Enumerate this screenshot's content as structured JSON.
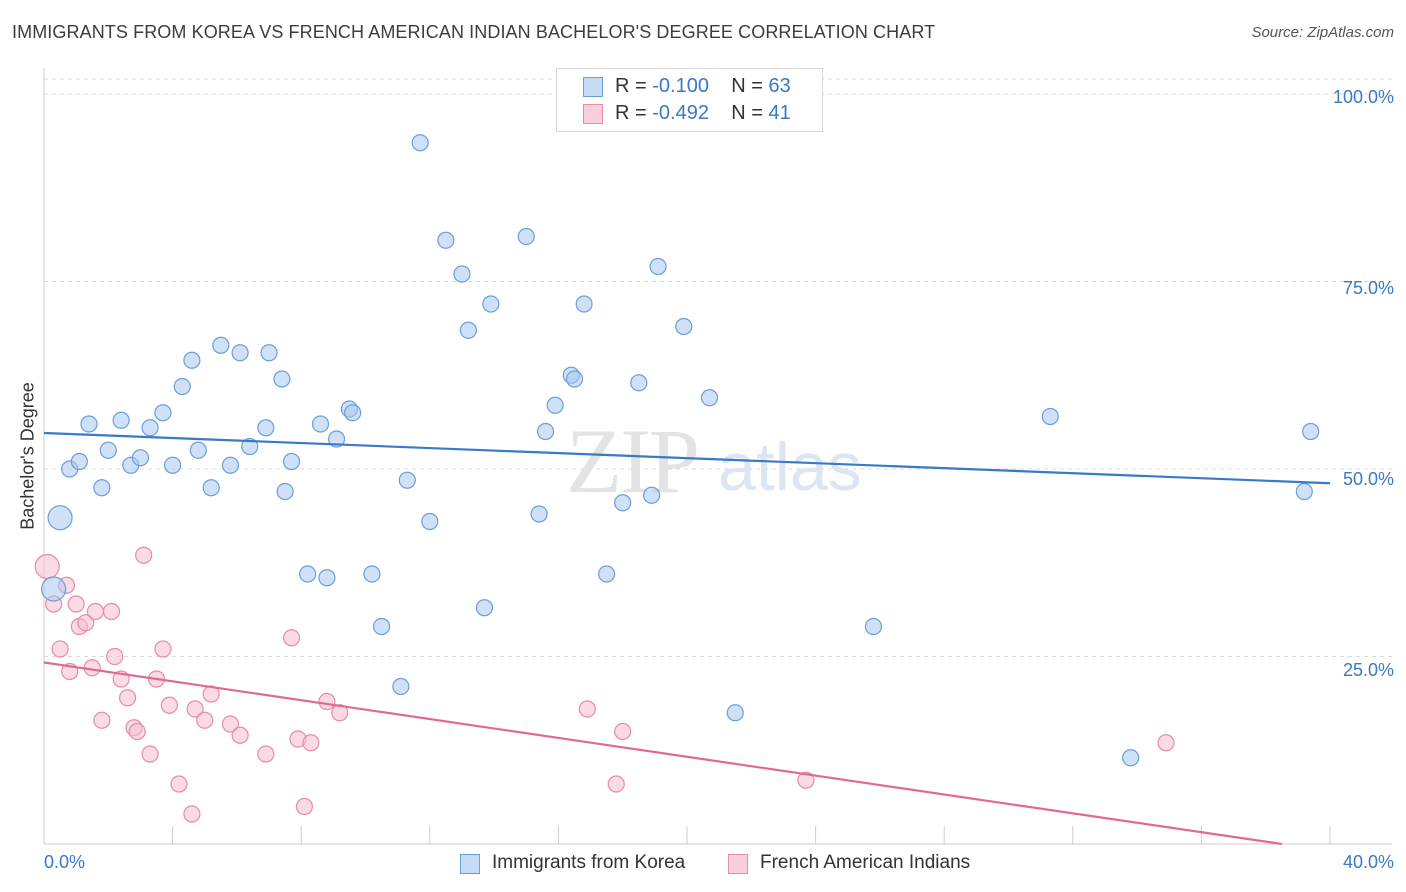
{
  "title": "IMMIGRANTS FROM KOREA VS FRENCH AMERICAN INDIAN BACHELOR'S DEGREE CORRELATION CHART",
  "source": "Source: ZipAtlas.com",
  "watermark": {
    "zip": "ZIP",
    "atlas": "atlas"
  },
  "legend": {
    "series1": {
      "r_label": "R = ",
      "r_value": "-0.100",
      "n_label": "N = ",
      "n_value": "63"
    },
    "series2": {
      "r_label": "R = ",
      "r_value": "-0.492",
      "n_label": "N = ",
      "n_value": "41"
    }
  },
  "bottom_legend": {
    "series1": "Immigrants from Korea",
    "series2": "French American Indians"
  },
  "colors": {
    "blue_fill": "#a9c9f0",
    "blue_stroke": "#6a9fd8",
    "blue_line": "#3a78c8",
    "pink_fill": "#f6bdd0",
    "pink_stroke": "#e88aa8",
    "pink_line": "#e06895",
    "grid": "#d9d9d9",
    "axis_text": "#3a78c8"
  },
  "chart_data": {
    "type": "scatter",
    "title": "IMMIGRANTS FROM KOREA VS FRENCH AMERICAN INDIAN BACHELOR'S DEGREE CORRELATION CHART",
    "xlabel": "",
    "ylabel": "Bachelor's Degree",
    "xlim": [
      0,
      40
    ],
    "ylim": [
      0,
      102
    ],
    "x_tick_labels": {
      "left": "0.0%",
      "right": "40.0%"
    },
    "y_ticks": [
      {
        "value": 100,
        "label": "100.0%"
      },
      {
        "value": 75,
        "label": "75.0%"
      },
      {
        "value": 50,
        "label": "50.0%"
      },
      {
        "value": 25,
        "label": "25.0%"
      }
    ],
    "grid": true,
    "legend_position": "top-center",
    "series": [
      {
        "name": "Immigrants from Korea",
        "color": "#6a9fd8",
        "points": [
          {
            "x": 0.3,
            "y": 34,
            "big": true
          },
          {
            "x": 0.5,
            "y": 43.5,
            "big": true
          },
          {
            "x": 0.8,
            "y": 50
          },
          {
            "x": 1.1,
            "y": 51
          },
          {
            "x": 1.4,
            "y": 56
          },
          {
            "x": 1.8,
            "y": 47.5
          },
          {
            "x": 2.0,
            "y": 52.5
          },
          {
            "x": 2.4,
            "y": 56.5
          },
          {
            "x": 2.7,
            "y": 50.5
          },
          {
            "x": 3.0,
            "y": 51.5
          },
          {
            "x": 3.3,
            "y": 55.5
          },
          {
            "x": 3.7,
            "y": 57.5
          },
          {
            "x": 4.0,
            "y": 50.5
          },
          {
            "x": 4.3,
            "y": 61
          },
          {
            "x": 4.6,
            "y": 64.5
          },
          {
            "x": 4.8,
            "y": 52.5
          },
          {
            "x": 5.2,
            "y": 47.5
          },
          {
            "x": 5.5,
            "y": 66.5
          },
          {
            "x": 5.8,
            "y": 50.5
          },
          {
            "x": 6.1,
            "y": 65.5
          },
          {
            "x": 6.4,
            "y": 53
          },
          {
            "x": 6.9,
            "y": 55.5
          },
          {
            "x": 7.0,
            "y": 65.5
          },
          {
            "x": 7.4,
            "y": 62
          },
          {
            "x": 7.5,
            "y": 47
          },
          {
            "x": 7.7,
            "y": 51
          },
          {
            "x": 8.2,
            "y": 36
          },
          {
            "x": 8.6,
            "y": 56
          },
          {
            "x": 8.8,
            "y": 35.5
          },
          {
            "x": 9.1,
            "y": 54
          },
          {
            "x": 9.5,
            "y": 58
          },
          {
            "x": 9.6,
            "y": 57.5
          },
          {
            "x": 10.2,
            "y": 36
          },
          {
            "x": 10.5,
            "y": 29
          },
          {
            "x": 11.1,
            "y": 21
          },
          {
            "x": 11.3,
            "y": 48.5
          },
          {
            "x": 11.7,
            "y": 93.5
          },
          {
            "x": 12.0,
            "y": 43
          },
          {
            "x": 12.5,
            "y": 80.5
          },
          {
            "x": 13.0,
            "y": 76
          },
          {
            "x": 13.2,
            "y": 68.5
          },
          {
            "x": 13.7,
            "y": 31.5
          },
          {
            "x": 13.9,
            "y": 72
          },
          {
            "x": 15.0,
            "y": 81
          },
          {
            "x": 15.4,
            "y": 44
          },
          {
            "x": 15.6,
            "y": 55
          },
          {
            "x": 15.9,
            "y": 58.5
          },
          {
            "x": 16.4,
            "y": 62.5
          },
          {
            "x": 16.5,
            "y": 62
          },
          {
            "x": 16.8,
            "y": 72
          },
          {
            "x": 17.5,
            "y": 36
          },
          {
            "x": 18.0,
            "y": 45.5
          },
          {
            "x": 18.5,
            "y": 61.5
          },
          {
            "x": 18.9,
            "y": 46.5
          },
          {
            "x": 19.1,
            "y": 77
          },
          {
            "x": 19.9,
            "y": 69
          },
          {
            "x": 20.7,
            "y": 59.5
          },
          {
            "x": 21.5,
            "y": 17.5
          },
          {
            "x": 25.8,
            "y": 29
          },
          {
            "x": 31.3,
            "y": 57
          },
          {
            "x": 33.8,
            "y": 11.5
          },
          {
            "x": 39.2,
            "y": 47
          },
          {
            "x": 39.4,
            "y": 55
          }
        ],
        "trend": {
          "x0": 0,
          "y0": 54.8,
          "x1": 40,
          "y1": 48.1
        }
      },
      {
        "name": "French American Indians",
        "color": "#e88aa8",
        "points": [
          {
            "x": 0.1,
            "y": 37,
            "big": true
          },
          {
            "x": 0.3,
            "y": 32
          },
          {
            "x": 0.5,
            "y": 26
          },
          {
            "x": 0.7,
            "y": 34.5
          },
          {
            "x": 0.8,
            "y": 23
          },
          {
            "x": 1.0,
            "y": 32
          },
          {
            "x": 1.1,
            "y": 29
          },
          {
            "x": 1.3,
            "y": 29.5
          },
          {
            "x": 1.5,
            "y": 23.5
          },
          {
            "x": 1.6,
            "y": 31
          },
          {
            "x": 1.8,
            "y": 16.5
          },
          {
            "x": 2.1,
            "y": 31
          },
          {
            "x": 2.2,
            "y": 25
          },
          {
            "x": 2.4,
            "y": 22
          },
          {
            "x": 2.6,
            "y": 19.5
          },
          {
            "x": 2.8,
            "y": 15.5
          },
          {
            "x": 2.9,
            "y": 15
          },
          {
            "x": 3.3,
            "y": 12
          },
          {
            "x": 3.5,
            "y": 22
          },
          {
            "x": 3.1,
            "y": 38.5
          },
          {
            "x": 3.7,
            "y": 26
          },
          {
            "x": 3.9,
            "y": 18.5
          },
          {
            "x": 4.2,
            "y": 8
          },
          {
            "x": 4.6,
            "y": 4
          },
          {
            "x": 4.7,
            "y": 18
          },
          {
            "x": 5.0,
            "y": 16.5
          },
          {
            "x": 5.2,
            "y": 20
          },
          {
            "x": 5.8,
            "y": 16
          },
          {
            "x": 6.1,
            "y": 14.5
          },
          {
            "x": 6.9,
            "y": 12
          },
          {
            "x": 7.7,
            "y": 27.5
          },
          {
            "x": 7.9,
            "y": 14
          },
          {
            "x": 8.1,
            "y": 5
          },
          {
            "x": 8.3,
            "y": 13.5
          },
          {
            "x": 8.8,
            "y": 19
          },
          {
            "x": 9.2,
            "y": 17.5
          },
          {
            "x": 16.9,
            "y": 18
          },
          {
            "x": 17.8,
            "y": 8
          },
          {
            "x": 18.0,
            "y": 15
          },
          {
            "x": 23.7,
            "y": 8.5
          },
          {
            "x": 34.9,
            "y": 13.5
          }
        ],
        "trend": {
          "x0": 0,
          "y0": 24.2,
          "x1": 38.5,
          "y1": 0
        }
      }
    ]
  }
}
